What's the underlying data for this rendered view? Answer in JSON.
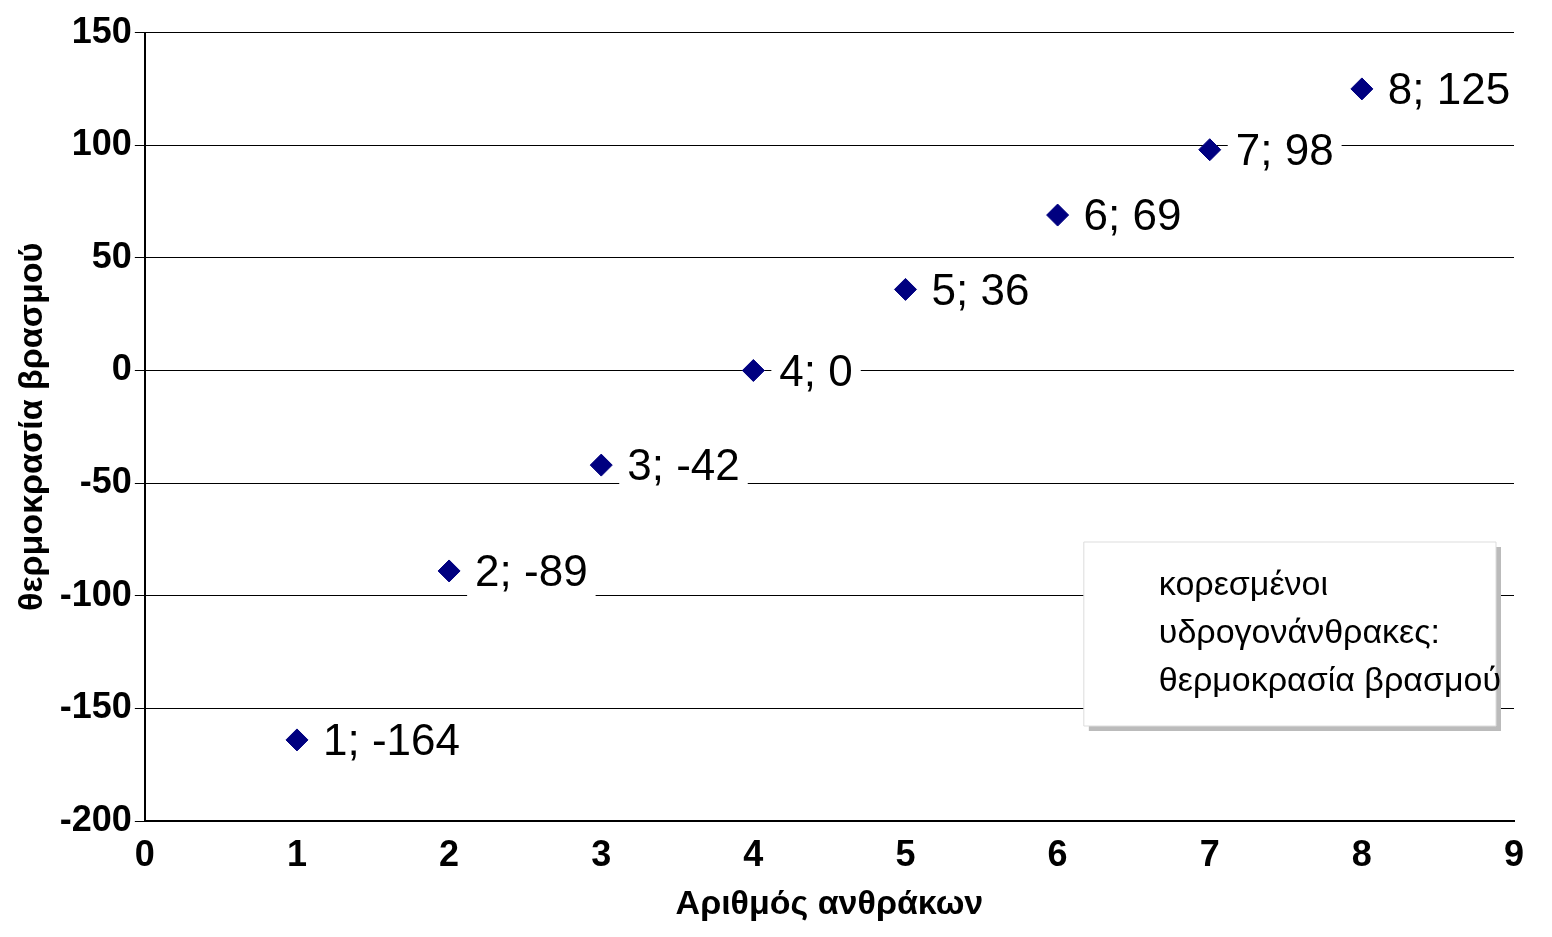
{
  "chart_data": {
    "type": "scatter",
    "xlabel": "Αριθμός ανθράκων",
    "ylabel": "θερμοκρασία βρασμού",
    "x": [
      1,
      2,
      3,
      4,
      5,
      6,
      7,
      8
    ],
    "series": [
      {
        "color": "#000080",
        "values": [
          -164,
          -89,
          -42,
          0,
          36,
          69,
          98,
          125
        ],
        "value_labels": [
          "1; -164",
          "2; -89",
          "3; -42",
          "4; 0",
          "5; 36",
          "6; 69",
          "7; 98",
          "8; 125"
        ]
      }
    ],
    "xlim": [
      0,
      9
    ],
    "xticks": [
      0,
      1,
      2,
      3,
      4,
      5,
      6,
      7,
      8,
      9
    ],
    "ylim": [
      -200,
      150
    ],
    "yticks": [
      -200,
      -150,
      -100,
      -50,
      0,
      50,
      100,
      150
    ],
    "grid": "y",
    "legend": false,
    "marker": "diamond",
    "annotations": [
      "κορεσμένοι\nυδρογονάνθρακες:\nθερμοκρασία βρασμού"
    ]
  }
}
